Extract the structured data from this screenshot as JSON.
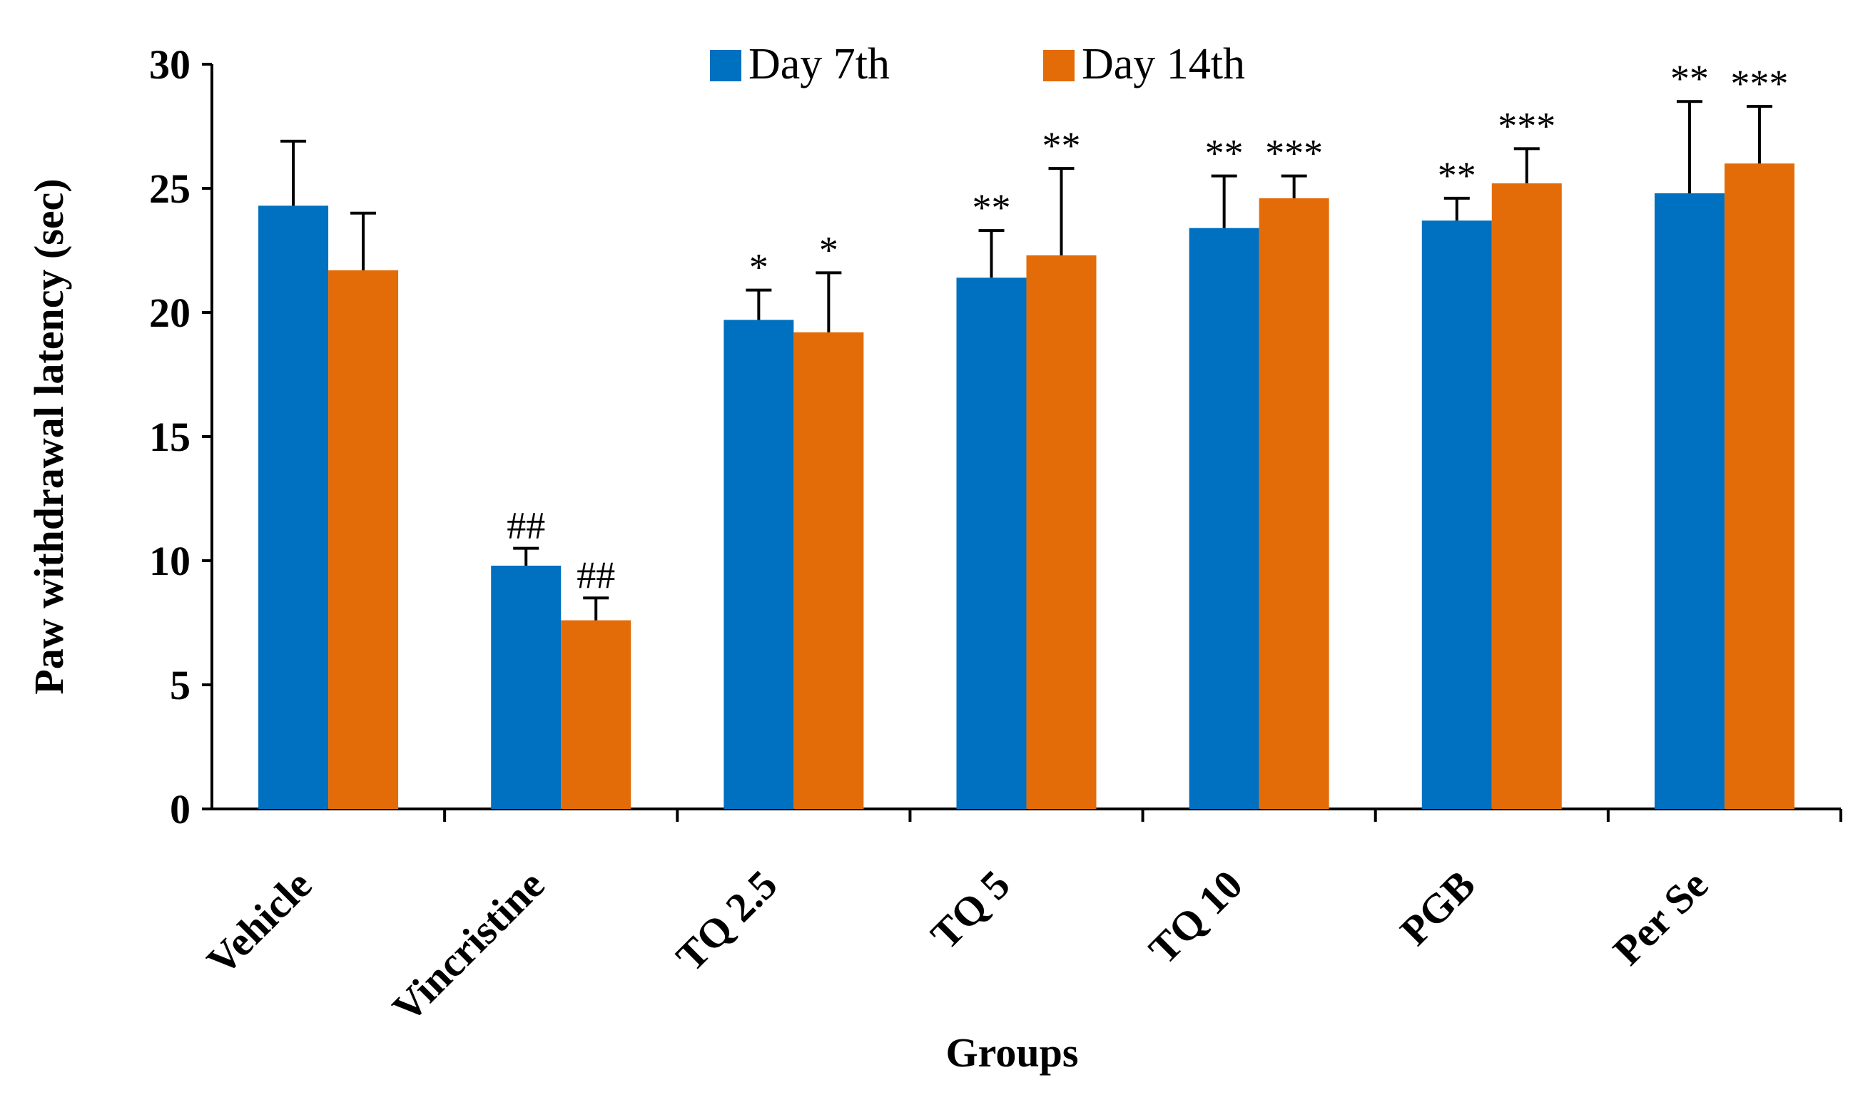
{
  "chart_data": {
    "type": "bar",
    "title": "",
    "xlabel": "Groups",
    "ylabel": "Paw withdrawal latency (sec)",
    "ylim": [
      0,
      30
    ],
    "yticks": [
      "0",
      "5",
      "10",
      "15",
      "20",
      "25",
      "30"
    ],
    "categories": [
      "Vehicle",
      "Vincristine",
      "TQ 2.5",
      "TQ 5",
      "TQ 10",
      "PGB",
      "Per Se"
    ],
    "legend_position": "top-center",
    "series": [
      {
        "name": "Day 7th",
        "color": "#0070C0",
        "values": [
          24.3,
          9.8,
          19.7,
          21.4,
          23.4,
          23.7,
          24.8
        ],
        "errors": [
          2.6,
          0.7,
          1.2,
          1.9,
          2.1,
          0.9,
          3.7
        ],
        "annotations": [
          "",
          "##",
          "*",
          "**",
          "**",
          "**",
          "**"
        ]
      },
      {
        "name": "Day 14th",
        "color": "#E36C09",
        "values": [
          21.7,
          7.6,
          19.2,
          22.3,
          24.6,
          25.2,
          26.0
        ],
        "errors": [
          2.3,
          0.9,
          2.4,
          3.5,
          0.9,
          1.4,
          2.3
        ],
        "annotations": [
          "",
          "##",
          "*",
          "**",
          "***",
          "***",
          "***"
        ]
      }
    ],
    "grid": false
  }
}
